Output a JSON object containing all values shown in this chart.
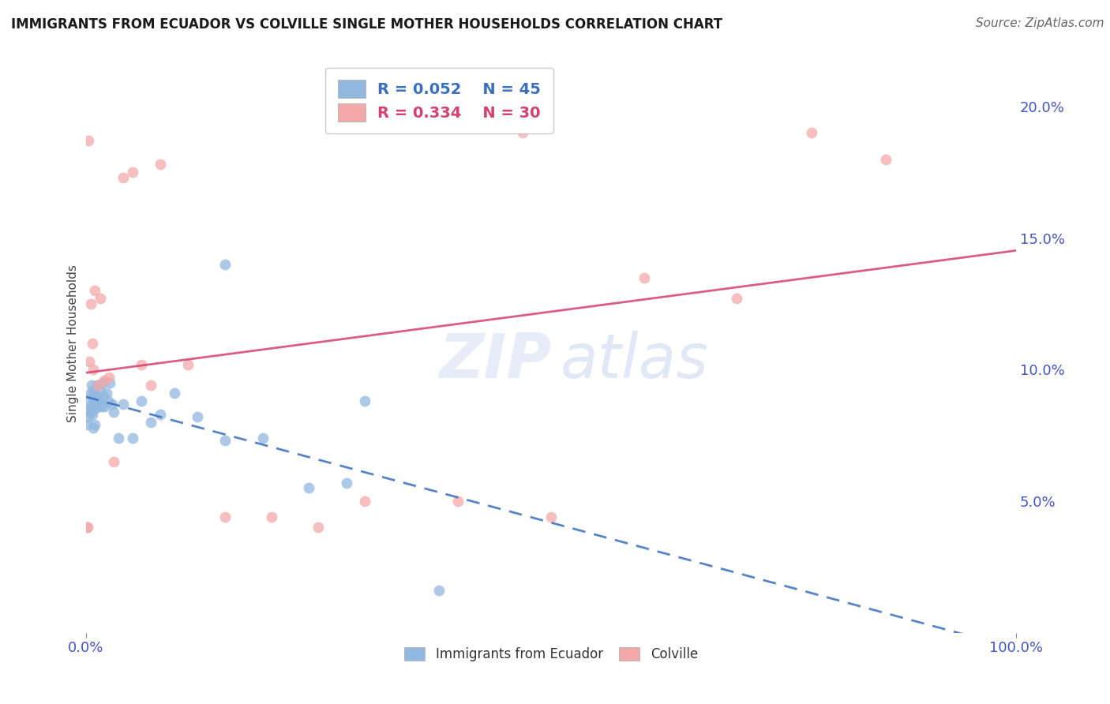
{
  "title": "IMMIGRANTS FROM ECUADOR VS COLVILLE SINGLE MOTHER HOUSEHOLDS CORRELATION CHART",
  "source": "Source: ZipAtlas.com",
  "ylabel": "Single Mother Households",
  "legend_label1": "Immigrants from Ecuador",
  "legend_label2": "Colville",
  "r1": "R = 0.052",
  "n1": "N = 45",
  "r2": "R = 0.334",
  "n2": "N = 30",
  "blue_color": "#92b8e0",
  "pink_color": "#f4a8a8",
  "blue_line_color": "#3a6fbd",
  "pink_line_color": "#d44070",
  "xlim": [
    0.0,
    1.0
  ],
  "ylim": [
    0.0,
    0.22
  ],
  "ylabel_right_ticks": [
    "5.0%",
    "10.0%",
    "15.0%",
    "20.0%"
  ],
  "ylabel_right_vals": [
    0.05,
    0.1,
    0.15,
    0.2
  ],
  "background_color": "#ffffff",
  "grid_color": "#cccccc",
  "blue_x": [
    0.001,
    0.002,
    0.003,
    0.004,
    0.005,
    0.005,
    0.006,
    0.006,
    0.007,
    0.007,
    0.008,
    0.008,
    0.009,
    0.01,
    0.01,
    0.011,
    0.012,
    0.013,
    0.014,
    0.015,
    0.016,
    0.017,
    0.018,
    0.019,
    0.02,
    0.022,
    0.024,
    0.026,
    0.028,
    0.03,
    0.035,
    0.04,
    0.05,
    0.06,
    0.07,
    0.08,
    0.095,
    0.12,
    0.15,
    0.19,
    0.24,
    0.3,
    0.15,
    0.28,
    0.38
  ],
  "blue_y": [
    0.079,
    0.085,
    0.082,
    0.088,
    0.084,
    0.091,
    0.086,
    0.094,
    0.09,
    0.083,
    0.092,
    0.078,
    0.088,
    0.085,
    0.079,
    0.09,
    0.094,
    0.088,
    0.086,
    0.088,
    0.092,
    0.086,
    0.095,
    0.09,
    0.086,
    0.091,
    0.088,
    0.095,
    0.087,
    0.084,
    0.074,
    0.087,
    0.074,
    0.088,
    0.08,
    0.083,
    0.091,
    0.082,
    0.14,
    0.074,
    0.055,
    0.088,
    0.073,
    0.057,
    0.016
  ],
  "pink_x": [
    0.001,
    0.002,
    0.003,
    0.004,
    0.005,
    0.007,
    0.008,
    0.01,
    0.013,
    0.016,
    0.02,
    0.025,
    0.03,
    0.04,
    0.05,
    0.06,
    0.07,
    0.08,
    0.11,
    0.15,
    0.2,
    0.25,
    0.3,
    0.4,
    0.47,
    0.5,
    0.6,
    0.7,
    0.78,
    0.86
  ],
  "pink_y": [
    0.04,
    0.04,
    0.187,
    0.103,
    0.125,
    0.11,
    0.1,
    0.13,
    0.094,
    0.127,
    0.096,
    0.097,
    0.065,
    0.173,
    0.175,
    0.102,
    0.094,
    0.178,
    0.102,
    0.044,
    0.044,
    0.04,
    0.05,
    0.05,
    0.19,
    0.044,
    0.135,
    0.127,
    0.19,
    0.18
  ]
}
